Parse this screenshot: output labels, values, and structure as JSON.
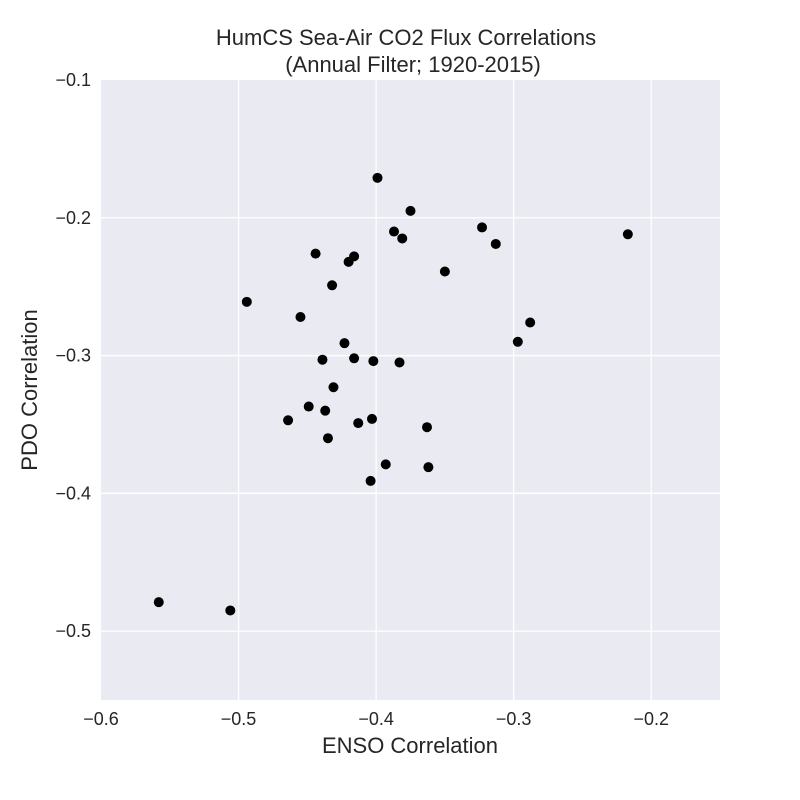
{
  "chart_data": {
    "type": "scatter",
    "title": "HumCS Sea-Air CO2 Flux Correlations",
    "subtitle": "(Annual Filter; 1920-2015)",
    "xlabel": "ENSO Correlation",
    "ylabel": "PDO Correlation",
    "xlim": [
      -0.6,
      -0.15
    ],
    "ylim": [
      -0.55,
      -0.1
    ],
    "xticks": [
      -0.6,
      -0.5,
      -0.4,
      -0.3,
      -0.2
    ],
    "yticks": [
      -0.1,
      -0.2,
      -0.3,
      -0.4,
      -0.5
    ],
    "xtick_labels": [
      "−0.6",
      "−0.5",
      "−0.4",
      "−0.3",
      "−0.2"
    ],
    "ytick_labels": [
      "−0.1",
      "−0.2",
      "−0.3",
      "−0.4",
      "−0.5"
    ],
    "grid": true,
    "colors": {
      "plot_bg": "#eaeaf2",
      "grid": "#ffffff",
      "marker": "#000000"
    },
    "points": [
      {
        "x": -0.399,
        "y": -0.171
      },
      {
        "x": -0.375,
        "y": -0.195
      },
      {
        "x": -0.323,
        "y": -0.207
      },
      {
        "x": -0.387,
        "y": -0.21
      },
      {
        "x": -0.381,
        "y": -0.215
      },
      {
        "x": -0.313,
        "y": -0.219
      },
      {
        "x": -0.217,
        "y": -0.212
      },
      {
        "x": -0.444,
        "y": -0.226
      },
      {
        "x": -0.416,
        "y": -0.228
      },
      {
        "x": -0.42,
        "y": -0.232
      },
      {
        "x": -0.35,
        "y": -0.239
      },
      {
        "x": -0.432,
        "y": -0.249
      },
      {
        "x": -0.494,
        "y": -0.261
      },
      {
        "x": -0.455,
        "y": -0.272
      },
      {
        "x": -0.288,
        "y": -0.276
      },
      {
        "x": -0.297,
        "y": -0.29
      },
      {
        "x": -0.423,
        "y": -0.291
      },
      {
        "x": -0.416,
        "y": -0.302
      },
      {
        "x": -0.439,
        "y": -0.303
      },
      {
        "x": -0.402,
        "y": -0.304
      },
      {
        "x": -0.383,
        "y": -0.305
      },
      {
        "x": -0.431,
        "y": -0.323
      },
      {
        "x": -0.449,
        "y": -0.337
      },
      {
        "x": -0.437,
        "y": -0.34
      },
      {
        "x": -0.403,
        "y": -0.346
      },
      {
        "x": -0.464,
        "y": -0.347
      },
      {
        "x": -0.413,
        "y": -0.349
      },
      {
        "x": -0.363,
        "y": -0.352
      },
      {
        "x": -0.435,
        "y": -0.36
      },
      {
        "x": -0.393,
        "y": -0.379
      },
      {
        "x": -0.362,
        "y": -0.381
      },
      {
        "x": -0.404,
        "y": -0.391
      },
      {
        "x": -0.558,
        "y": -0.479
      },
      {
        "x": -0.506,
        "y": -0.485
      }
    ]
  }
}
